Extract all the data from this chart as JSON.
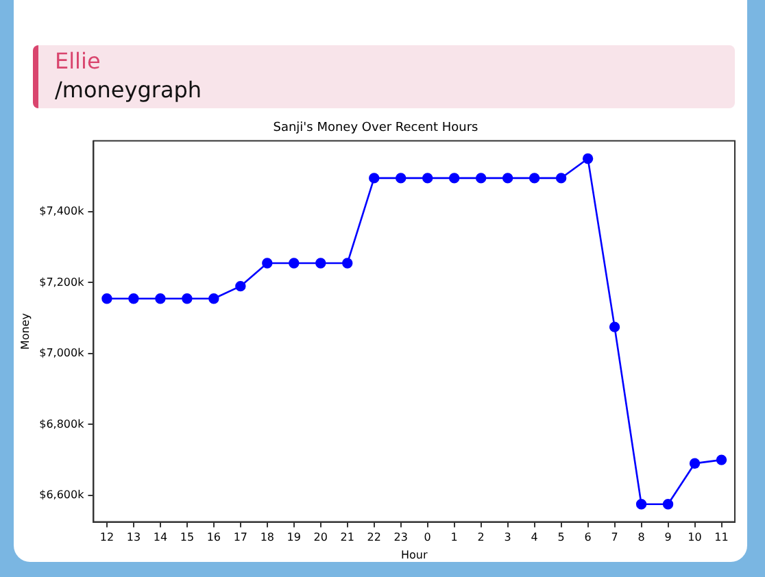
{
  "chart_data": {
    "type": "line",
    "title": "Sanji's Money Over Recent Hours",
    "xlabel": "Hour",
    "ylabel": "Money",
    "annotations": [
      "Ellie",
      "/moneygraph"
    ],
    "categories": [
      "12",
      "13",
      "14",
      "15",
      "16",
      "17",
      "18",
      "19",
      "20",
      "21",
      "22",
      "23",
      "0",
      "1",
      "2",
      "3",
      "4",
      "5",
      "6",
      "7",
      "8",
      "9",
      "10",
      "11"
    ],
    "series": [
      {
        "color": "#0000ff",
        "values": [
          7155,
          7155,
          7155,
          7155,
          7155,
          7190,
          7255,
          7255,
          7255,
          7255,
          7495,
          7495,
          7495,
          7495,
          7495,
          7495,
          7495,
          7495,
          7550,
          7075,
          6575,
          6575,
          6690,
          6700
        ]
      }
    ],
    "ylim": [
      6525,
      7600
    ],
    "yticks": [
      {
        "value": 6600,
        "label": "$6,600k"
      },
      {
        "value": 6800,
        "label": "$6,800k"
      },
      {
        "value": 7000,
        "label": "$7,000k"
      },
      {
        "value": 7200,
        "label": "$7,200k"
      },
      {
        "value": 7400,
        "label": "$7,400k"
      }
    ],
    "grid": false,
    "legend": false,
    "marker": "circle",
    "line_style": "solid"
  }
}
